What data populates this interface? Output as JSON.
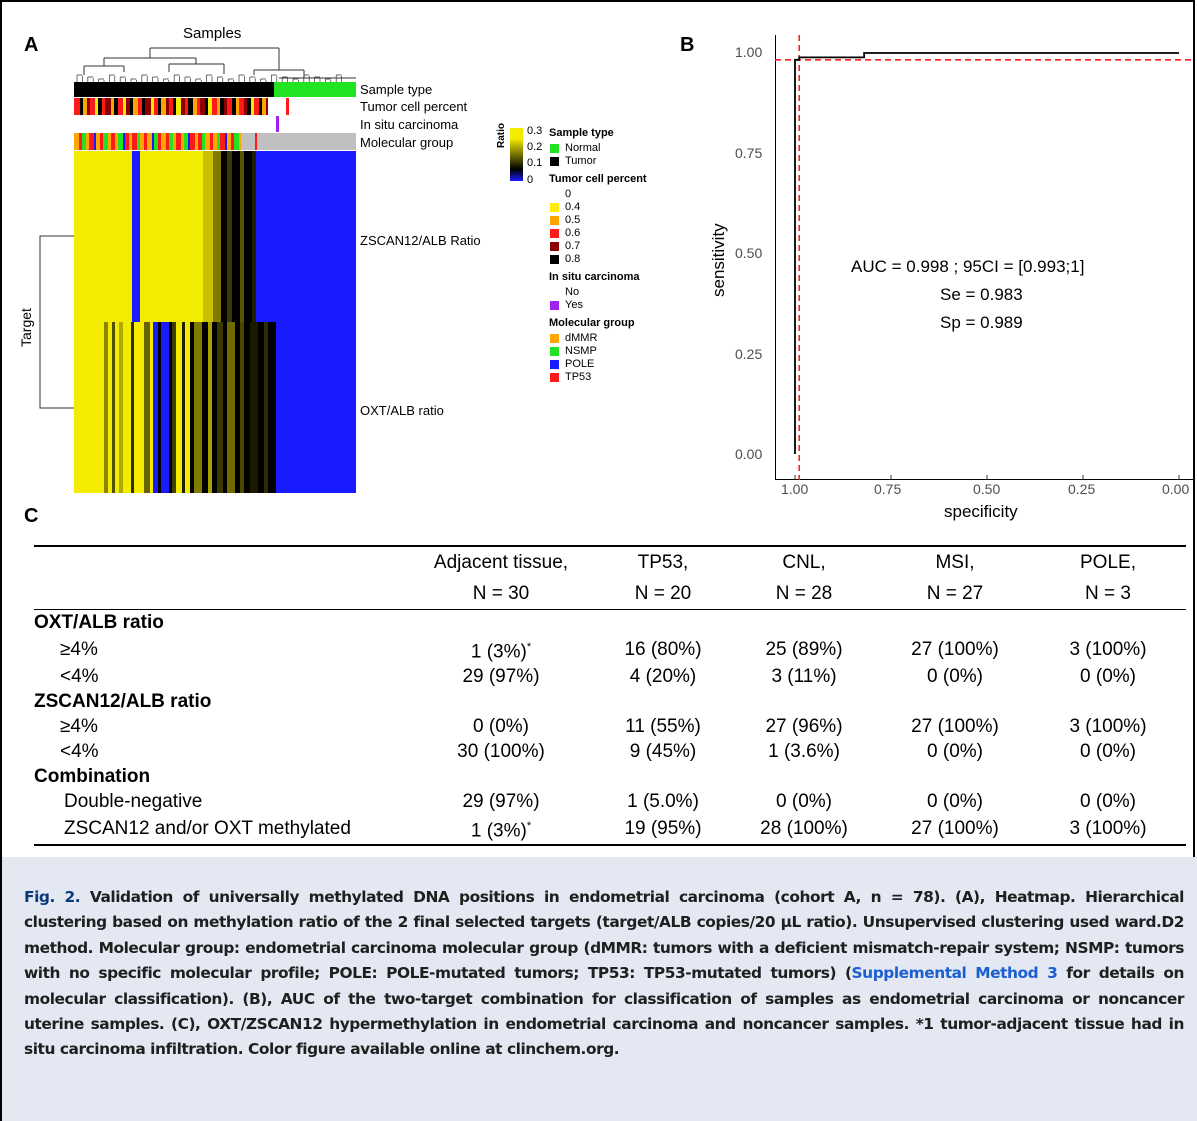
{
  "panel_a": {
    "letter": "A",
    "dendrogram_label": "Samples",
    "y_title": "Target",
    "track_labels": [
      "Sample type",
      "Tumor cell percent",
      "In situ carcinoma",
      "Molecular group"
    ],
    "row_labels": [
      "ZSCAN12/ALB Ratio",
      "OXT/ALB ratio"
    ],
    "ratio_scale": {
      "title": "Ratio",
      "ticks": [
        "0.3",
        "0.2",
        "0.1",
        "0"
      ],
      "colors": [
        "#f3ec00",
        "#000000",
        "#1a1aff"
      ]
    },
    "legend": [
      {
        "title": "Sample type",
        "items": [
          {
            "label": "Normal",
            "color": "#22e322"
          },
          {
            "label": "Tumor",
            "color": "#000000"
          }
        ]
      },
      {
        "title": "Tumor cell percent",
        "items": [
          {
            "label": "0",
            "color": "#ffffff"
          },
          {
            "label": "0.4",
            "color": "#ffee00"
          },
          {
            "label": "0.5",
            "color": "#ffa500"
          },
          {
            "label": "0.6",
            "color": "#ff1a1a"
          },
          {
            "label": "0.7",
            "color": "#8b0000"
          },
          {
            "label": "0.8",
            "color": "#000000"
          }
        ]
      },
      {
        "title": "In situ carcinoma",
        "items": [
          {
            "label": "No",
            "color": "#ffffff"
          },
          {
            "label": "Yes",
            "color": "#a020f0"
          }
        ]
      },
      {
        "title": "Molecular group",
        "items": [
          {
            "label": "dMMR",
            "color": "#ffa500"
          },
          {
            "label": "NSMP",
            "color": "#22e322"
          },
          {
            "label": "POLE",
            "color": "#1a1aff"
          },
          {
            "label": "TP53",
            "color": "#ff1a1a"
          }
        ]
      }
    ]
  },
  "panel_b": {
    "letter": "B",
    "chart_data": {
      "type": "line",
      "xlabel": "specificity",
      "ylabel": "sensitivity",
      "x_ticks": [
        "1.00",
        "0.75",
        "0.50",
        "0.25",
        "0.00"
      ],
      "y_ticks": [
        "1.00",
        "0.75",
        "0.50",
        "0.25",
        "0.00"
      ],
      "xlim": [
        1.0,
        0.0
      ],
      "ylim": [
        0.0,
        1.0
      ],
      "x_reversed": true,
      "grid": false,
      "series": [
        {
          "x": [
            1.0,
            1.0,
            0.989,
            0.989,
            0.82,
            0.82,
            0.0
          ],
          "y": [
            0.0,
            0.983,
            0.983,
            0.989,
            0.989,
            1.0,
            1.0
          ],
          "color": "#000000"
        }
      ],
      "reference_lines": [
        {
          "axis": "x",
          "value": 0.989,
          "color": "#ff2020",
          "style": "dashed"
        },
        {
          "axis": "y",
          "value": 0.983,
          "color": "#ff2020",
          "style": "dashed"
        }
      ],
      "annotations": [
        "AUC = 0.998 ; 95CI = [0.993;1]",
        "Se = 0.983",
        "Sp = 0.989"
      ]
    }
  },
  "panel_c": {
    "letter": "C",
    "columns": [
      {
        "line1": "Adjacent tissue,",
        "line2": "N = 30"
      },
      {
        "line1": "TP53,",
        "line2": "N = 20"
      },
      {
        "line1": "CNL,",
        "line2": "N = 28"
      },
      {
        "line1": "MSI,",
        "line2": "N = 27"
      },
      {
        "line1": "POLE,",
        "line2": "N = 3"
      }
    ],
    "sections": [
      {
        "title": "OXT/ALB ratio",
        "rows": [
          {
            "label": "≥4%",
            "cells": [
              "1 (3%)*",
              "16 (80%)",
              "25 (89%)",
              "27 (100%)",
              "3 (100%)"
            ]
          },
          {
            "label": "<4%",
            "cells": [
              "29 (97%)",
              "4 (20%)",
              "3 (11%)",
              "0 (0%)",
              "0 (0%)"
            ]
          }
        ]
      },
      {
        "title": "ZSCAN12/ALB ratio",
        "rows": [
          {
            "label": "≥4%",
            "cells": [
              "0 (0%)",
              "11 (55%)",
              "27 (96%)",
              "27 (100%)",
              "3 (100%)"
            ]
          },
          {
            "label": "<4%",
            "cells": [
              "30 (100%)",
              "9 (45%)",
              "1 (3.6%)",
              "0 (0%)",
              "0 (0%)"
            ]
          }
        ]
      },
      {
        "title": "Combination",
        "rows": [
          {
            "label": "Double-negative",
            "cells": [
              "29 (97%)",
              "1 (5.0%)",
              "0 (0%)",
              "0 (0%)",
              "0 (0%)"
            ]
          },
          {
            "label": "ZSCAN12 and/or OXT methylated",
            "cells": [
              "1 (3%)*",
              "19 (95%)",
              "28 (100%)",
              "27 (100%)",
              "3 (100%)"
            ]
          }
        ]
      }
    ]
  },
  "caption": {
    "fig_label": "Fig. 2.",
    "text_before_link": "Validation of universally methylated DNA positions in endometrial carcinoma (cohort A, n = 78). (A), Heatmap. Hierarchical clustering based on methylation ratio of the 2 final selected targets (target/ALB copies/20 μL ratio). Unsupervised clustering used ward.D2 method. Molecular group: endometrial carcinoma molecular group (dMMR: tumors with a deficient mismatch-repair system; NSMP: tumors with no specific molecular profile; POLE: POLE-mutated tumors; TP53: TP53-mutated tumors) (",
    "link_text": "Supplemental Method 3",
    "text_after_link": " for details on molecular classification). (B), AUC of the two-target combination for classification of samples as endometrial carcinoma or noncancer uterine samples. (C), OXT/ZSCAN12 hypermethylation in endometrial carcinoma and noncancer samples. *1 tumor-adjacent tissue had in situ carcinoma infiltration. Color figure available online at clinchem.org."
  }
}
